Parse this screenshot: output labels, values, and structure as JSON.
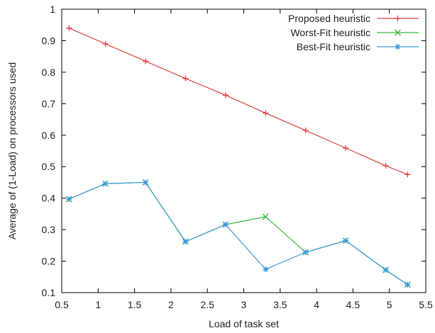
{
  "chart_data": {
    "type": "line",
    "title": "",
    "xlabel": "Load of task set",
    "ylabel": "Average of (1-Load) on processors used",
    "xlim": [
      0.5,
      5.5
    ],
    "ylim": [
      0.1,
      1.0
    ],
    "xticks": [
      0.5,
      1,
      1.5,
      2,
      2.5,
      3,
      3.5,
      4,
      4.5,
      5,
      5.5
    ],
    "xtick_labels": [
      "0.5",
      "1",
      "1.5",
      "2",
      "2.5",
      "3",
      "3.5",
      "4",
      "4.5",
      "5",
      "5.5"
    ],
    "yticks": [
      0.1,
      0.2,
      0.3,
      0.4,
      0.5,
      0.6,
      0.7,
      0.8,
      0.9,
      1.0
    ],
    "ytick_labels": [
      "0.1",
      "0.2",
      "0.3",
      "0.4",
      "0.5",
      "0.6",
      "0.7",
      "0.8",
      "0.9",
      "1"
    ],
    "grid": false,
    "legend_position": "top-right",
    "series": [
      {
        "name": "Proposed heuristic",
        "color": "#e0413f",
        "marker": "plus",
        "x": [
          0.6,
          1.1,
          1.65,
          2.2,
          2.75,
          3.3,
          3.85,
          4.4,
          4.95,
          5.25
        ],
        "y": [
          0.94,
          0.89,
          0.835,
          0.78,
          0.727,
          0.67,
          0.615,
          0.559,
          0.503,
          0.475
        ]
      },
      {
        "name": "Worst-Fit heuristic",
        "color": "#3db33d",
        "marker": "x",
        "x": [
          0.6,
          1.1,
          1.65,
          2.2,
          2.75,
          3.3,
          3.85,
          4.4,
          4.95,
          5.25
        ],
        "y": [
          0.397,
          0.446,
          0.45,
          0.262,
          0.316,
          0.341,
          0.228,
          0.265,
          0.172,
          0.125
        ]
      },
      {
        "name": "Best-Fit heuristic",
        "color": "#3b9ad6",
        "marker": "star",
        "x": [
          0.6,
          1.1,
          1.65,
          2.2,
          2.75,
          3.3,
          3.85,
          4.4,
          4.95,
          5.25
        ],
        "y": [
          0.397,
          0.446,
          0.45,
          0.262,
          0.316,
          0.174,
          0.228,
          0.265,
          0.172,
          0.125
        ]
      }
    ]
  }
}
